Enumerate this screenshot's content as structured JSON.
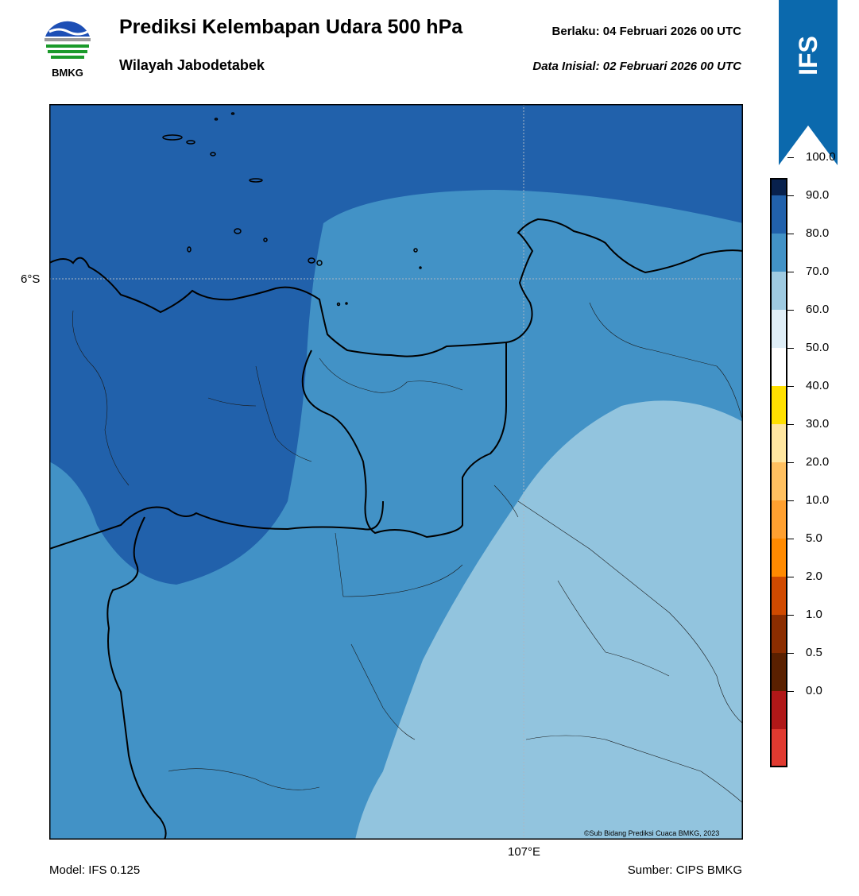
{
  "header": {
    "title": "Prediksi Kelembapan Udara 500 hPa",
    "subtitle": "Wilayah Jabodetabek",
    "valid": "Berlaku:  04 Februari 2026 00 UTC",
    "initial": "Data Inisial:  02 Februari 2026 00 UTC",
    "logo_text": "BMKG",
    "ribbon_text": "IFS"
  },
  "map": {
    "lat_label": "6°S",
    "lon_label": "107°E",
    "copyright": "©Sub Bidang Prediksi Cuaca BMKG, 2023",
    "regions": [
      {
        "class": "80-90",
        "color": "#2161ab"
      },
      {
        "class": "70-80",
        "color": "#4292c6"
      },
      {
        "class": "60-70",
        "color": "#92c4de"
      }
    ]
  },
  "colorbar": {
    "colors": [
      "#2d0050",
      "#08214d",
      "#2161ab",
      "#4292c6",
      "#9ecae1",
      "#dfeef7",
      "#ffffff",
      "#ffe000",
      "#ffe6a0",
      "#ffc060",
      "#ffa030",
      "#ff8a00",
      "#d04a00",
      "#8b2d00",
      "#5a2000",
      "#b01818",
      "#e03a30"
    ],
    "labels": [
      "100.0",
      "90.0",
      "80.0",
      "70.0",
      "60.0",
      "50.0",
      "40.0",
      "30.0",
      "20.0",
      "10.0",
      "5.0",
      "2.0",
      "1.0",
      "0.5",
      "0.0"
    ]
  },
  "footer": {
    "model": "Model: IFS 0.125",
    "source": "Sumber: CIPS BMKG"
  }
}
